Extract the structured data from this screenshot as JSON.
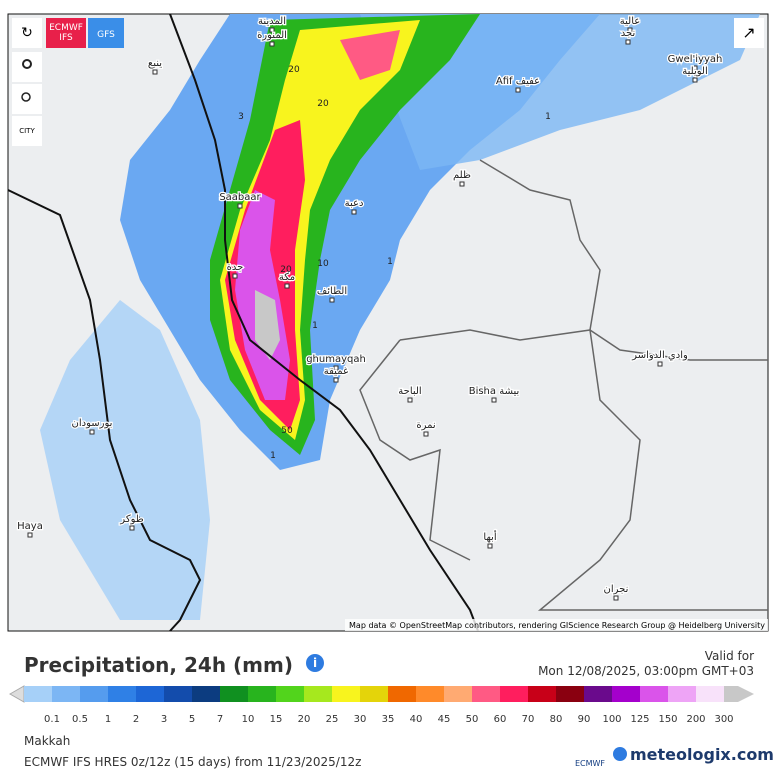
{
  "toolbar": {
    "models": [
      "ECMWF IFS",
      "GFS"
    ],
    "city_button": "CITY"
  },
  "map": {
    "places": [
      "المدينة",
      "المنورة",
      "ينبع",
      "عالية",
      "نجد",
      "Gwel'iyyah",
      "الويلية",
      "Afif عفيف",
      "ظلم",
      "دعبة",
      "Saabaar",
      "جدة",
      "مكة",
      "الطائف",
      "ghumayqah",
      "غميقة",
      "وادي الدواسر",
      "الباحة",
      "Bisha بيشة",
      "نمرة",
      "بورسودان",
      "Haya",
      "طوكر",
      "أبها",
      "نجران"
    ],
    "contour_labels": [
      "20",
      "20",
      "3",
      "10",
      "1",
      "20",
      "50",
      "1",
      "1",
      "1"
    ],
    "attribution": "Map data © OpenStreetMap contributors, rendering GIScience Research Group @ Heidelberg University"
  },
  "header": {
    "title": "Precipitation, 24h (mm)",
    "valid_for": "Valid for",
    "valid_time": "Mon 12/08/2025, 03:00pm GMT+03"
  },
  "legend": {
    "labels": [
      "0.1",
      "0.5",
      "1",
      "2",
      "3",
      "5",
      "7",
      "10",
      "15",
      "20",
      "25",
      "30",
      "35",
      "40",
      "45",
      "50",
      "60",
      "70",
      "80",
      "90",
      "100",
      "125",
      "150",
      "200",
      "300"
    ],
    "colors": [
      "#a6d0f8",
      "#7cb6f4",
      "#559cee",
      "#2f80e6",
      "#1d66d6",
      "#134cac",
      "#0c3c80",
      "#109020",
      "#28b41e",
      "#52d41c",
      "#a6e81e",
      "#f8f41e",
      "#e4d40a",
      "#f06800",
      "#ff8a2a",
      "#ffaa72",
      "#ff5a84",
      "#ff1e5e",
      "#c80018",
      "#8a0010",
      "#6a0a8c",
      "#a400cc",
      "#da54ea",
      "#eea4f6",
      "#f8e2fa",
      "#c8c8c8"
    ]
  },
  "footer": {
    "location": "Makkah",
    "model_run": "ECMWF IFS HRES 0z/12z (15 days) from 11/23/2025/12z",
    "ecmwf": "ECMWF",
    "brand": "meteologix.com"
  }
}
